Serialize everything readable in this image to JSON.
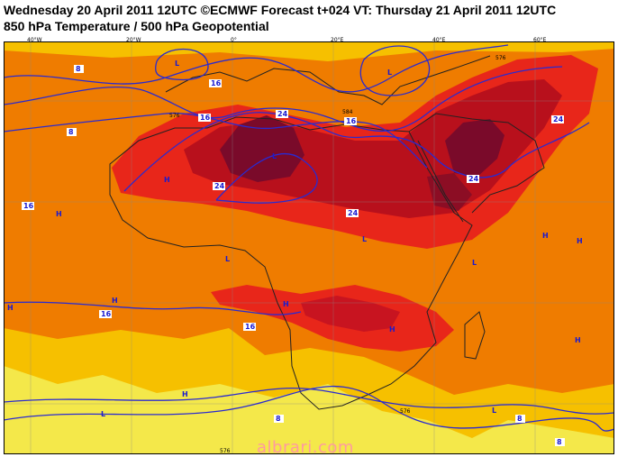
{
  "header": {
    "title_line1": "Wednesday 20 April 2011 12UTC ©ECMWF Forecast t+024 VT: Thursday 21 April 2011 12UTC",
    "title_line2": "850 hPa Temperature / 500 hPa Geopotential"
  },
  "longitude_labels": [
    "40°W",
    "20°W",
    "0°",
    "20°E",
    "40°E",
    "60°E"
  ],
  "contour_labels": {
    "temperature": [
      "8",
      "16",
      "24"
    ],
    "geopotential": [
      "576",
      "584"
    ]
  },
  "pressure_centers": {
    "high": "H",
    "low": "L"
  },
  "watermark": "albrari.com",
  "colors": {
    "frame": "#000000",
    "coastline": "#222222",
    "contour_line": "#2a2ad0",
    "label_text": "#1a1ad0",
    "band_yellow": "#f4e84a",
    "band_amber": "#f6c000",
    "band_orange": "#ef7c00",
    "band_red": "#e8261a",
    "band_crimson": "#b8101c",
    "band_maroon": "#7a0a2a"
  }
}
